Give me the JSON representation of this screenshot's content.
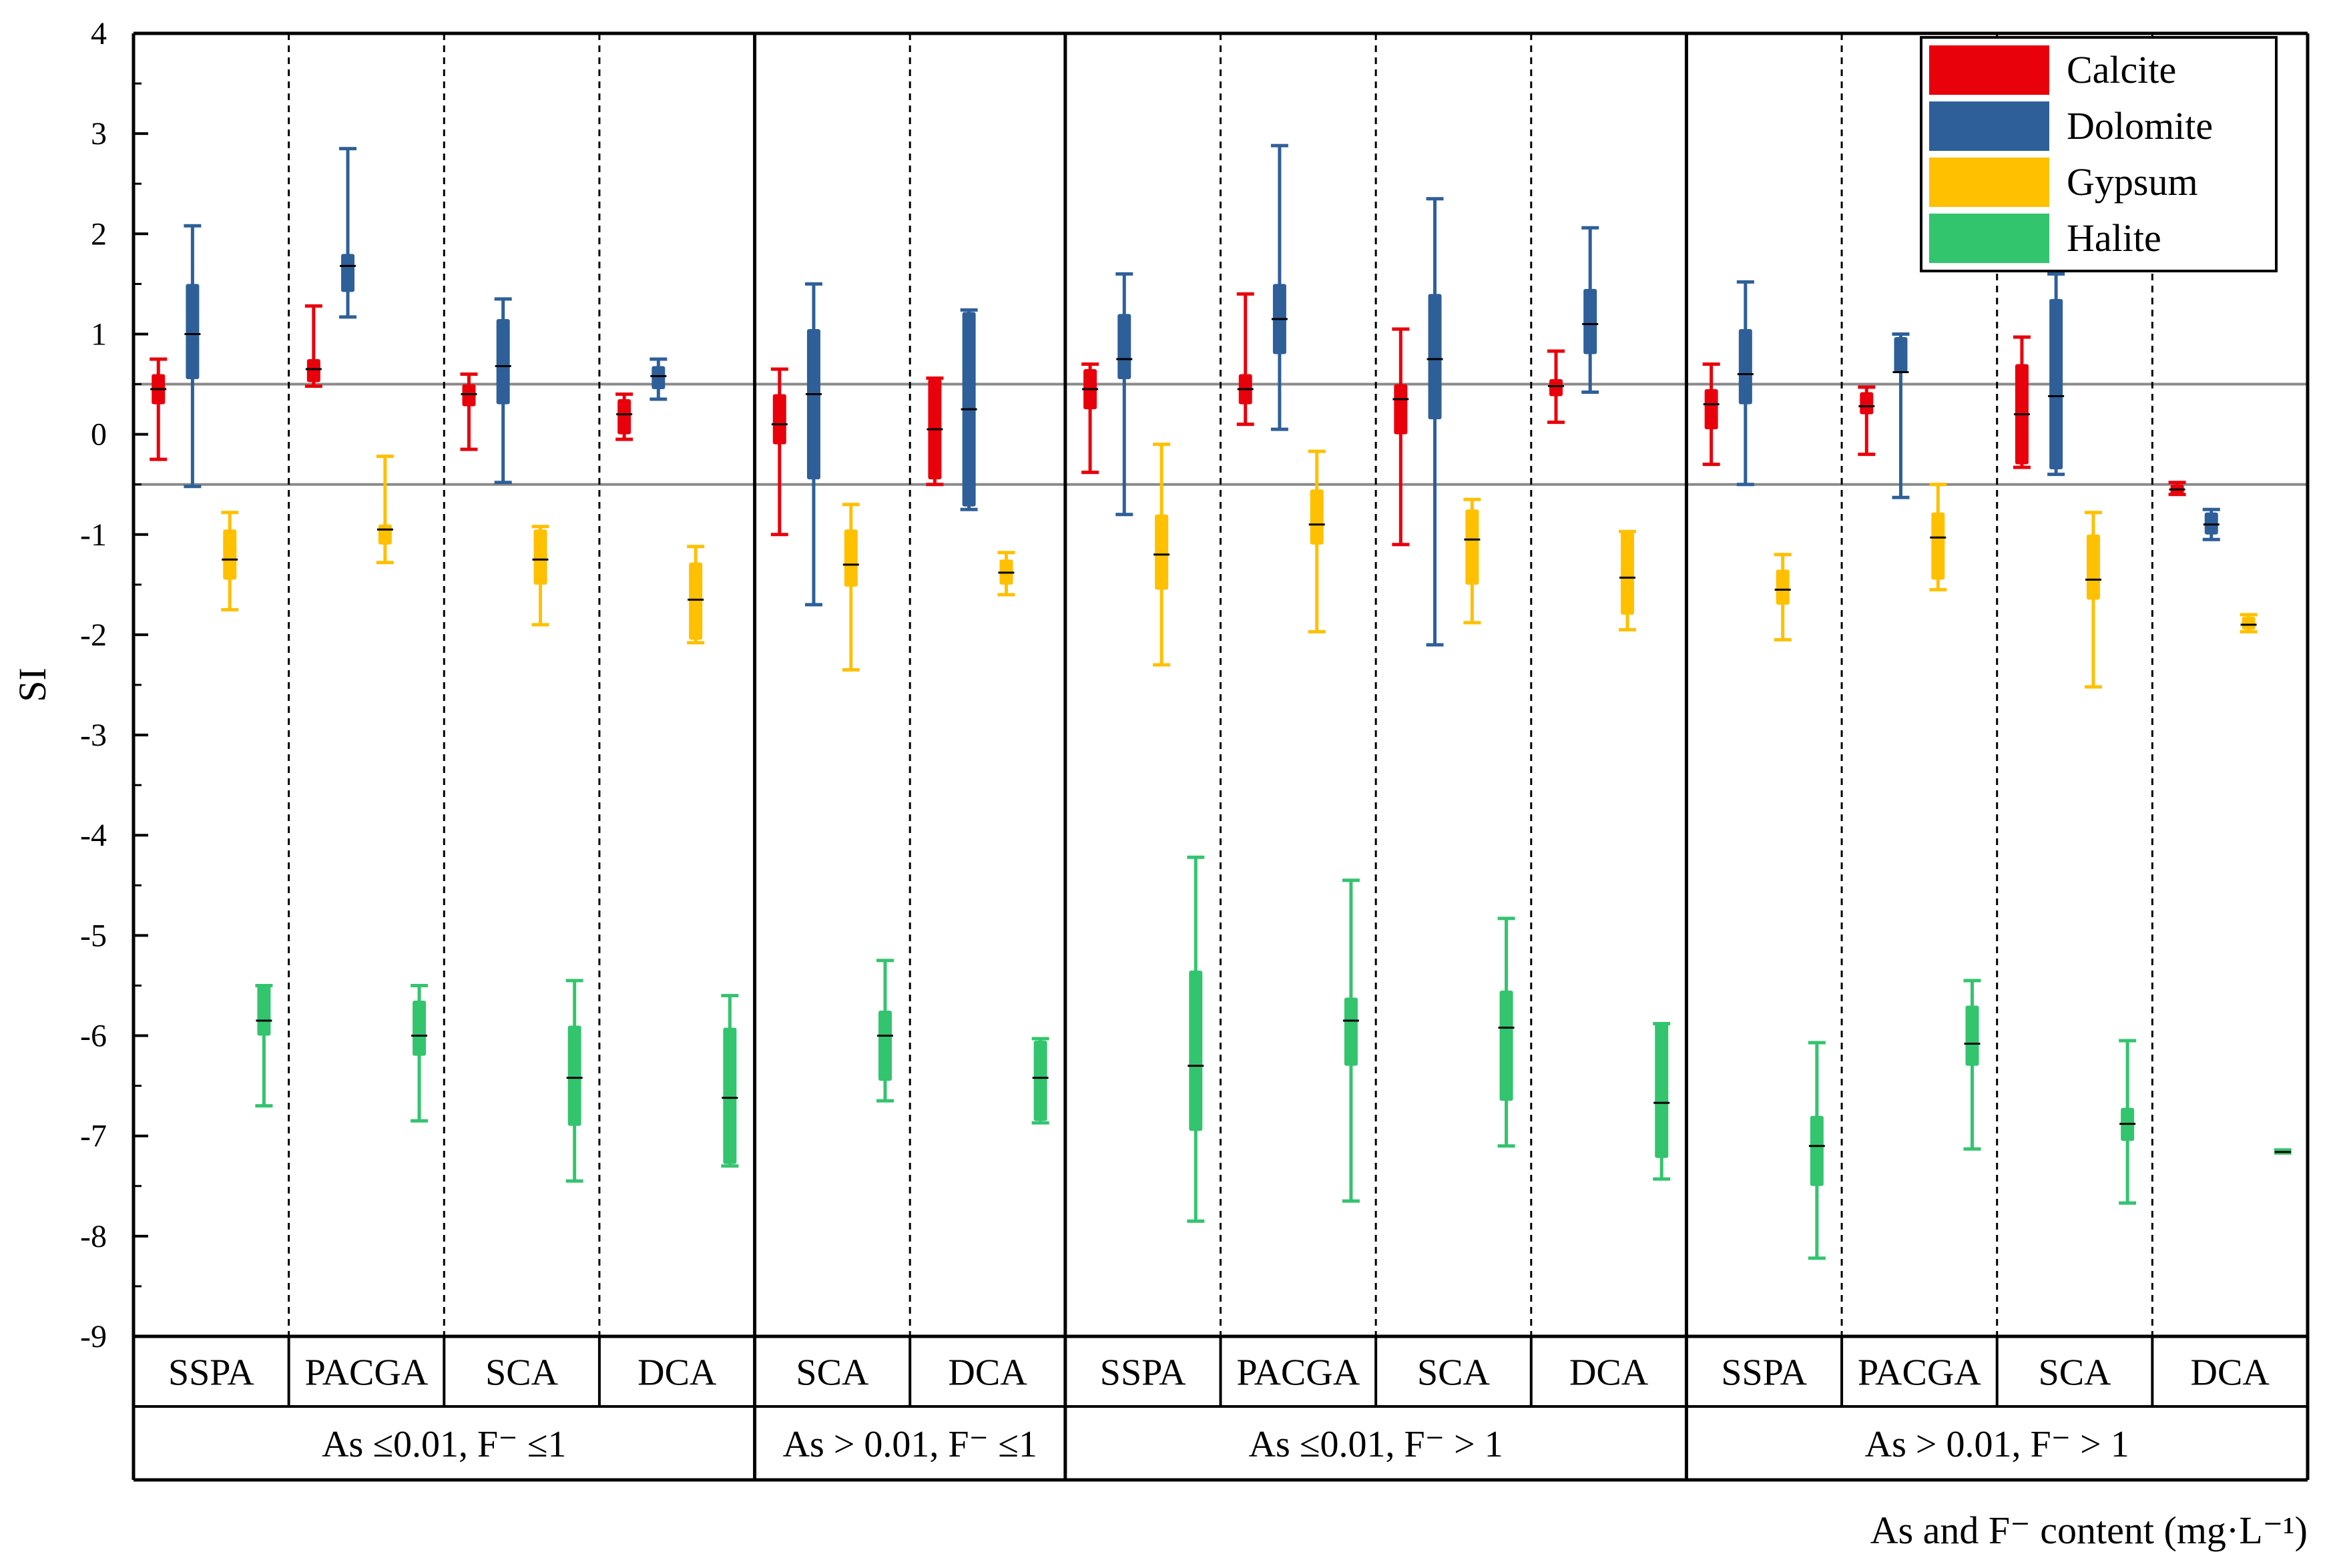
{
  "chart_data": {
    "type": "box",
    "ylabel": "SI",
    "xlabel": "As and F⁻ content (mg·L⁻¹)",
    "ylim": [
      -9,
      4
    ],
    "yticks": [
      "4",
      "3",
      "2",
      "1",
      "0",
      "-1",
      "-2",
      "-3",
      "-4",
      "-5",
      "-6",
      "-7",
      "-8",
      "-9"
    ],
    "reference_lines": [
      0.5,
      -0.5
    ],
    "legend": {
      "placement": "top-right",
      "entries": [
        {
          "name": "Calcite",
          "color": "#e8000b"
        },
        {
          "name": "Dolomite",
          "color": "#2e5f99"
        },
        {
          "name": "Gypsum",
          "color": "#ffc000"
        },
        {
          "name": "Halite",
          "color": "#33c46e"
        }
      ]
    },
    "groups": [
      {
        "label": "As ≤0.01, F⁻ ≤1",
        "categories": [
          "SSPA",
          "PACGA",
          "SCA",
          "DCA"
        ]
      },
      {
        "label": "As > 0.01, F⁻ ≤1",
        "categories": [
          "SCA",
          "DCA"
        ]
      },
      {
        "label": "As ≤0.01, F⁻ > 1",
        "categories": [
          "SSPA",
          "PACGA",
          "SCA",
          "DCA"
        ]
      },
      {
        "label": "As > 0.01, F⁻ > 1",
        "categories": [
          "SSPA",
          "PACGA",
          "SCA",
          "DCA"
        ]
      }
    ],
    "series": [
      {
        "name": "Calcite",
        "boxes": [
          {
            "min": -0.25,
            "q1": 0.3,
            "median": 0.45,
            "q3": 0.6,
            "max": 0.75
          },
          {
            "min": 0.48,
            "q1": 0.52,
            "median": 0.65,
            "q3": 0.75,
            "max": 1.28
          },
          {
            "min": -0.15,
            "q1": 0.28,
            "median": 0.4,
            "q3": 0.5,
            "max": 0.6
          },
          {
            "min": -0.05,
            "q1": 0.0,
            "median": 0.2,
            "q3": 0.35,
            "max": 0.4
          },
          {
            "min": -1.0,
            "q1": -0.1,
            "median": 0.1,
            "q3": 0.4,
            "max": 0.65
          },
          {
            "min": -0.5,
            "q1": -0.45,
            "median": 0.05,
            "q3": 0.55,
            "max": 0.56
          },
          {
            "min": -0.38,
            "q1": 0.25,
            "median": 0.45,
            "q3": 0.65,
            "max": 0.7
          },
          {
            "min": 0.1,
            "q1": 0.3,
            "median": 0.45,
            "q3": 0.6,
            "max": 1.4
          },
          {
            "min": -1.1,
            "q1": 0.0,
            "median": 0.35,
            "q3": 0.5,
            "max": 1.05
          },
          {
            "min": 0.12,
            "q1": 0.38,
            "median": 0.48,
            "q3": 0.55,
            "max": 0.83
          },
          {
            "min": -0.3,
            "q1": 0.05,
            "median": 0.3,
            "q3": 0.45,
            "max": 0.7
          },
          {
            "min": -0.2,
            "q1": 0.2,
            "median": 0.28,
            "q3": 0.42,
            "max": 0.47
          },
          {
            "min": -0.33,
            "q1": -0.3,
            "median": 0.2,
            "q3": 0.7,
            "max": 0.97
          },
          {
            "min": -0.6,
            "q1": -0.6,
            "median": -0.55,
            "q3": -0.5,
            "max": -0.48
          }
        ]
      },
      {
        "name": "Dolomite",
        "boxes": [
          {
            "min": -0.52,
            "q1": 0.55,
            "median": 1.0,
            "q3": 1.5,
            "max": 2.08
          },
          {
            "min": 1.17,
            "q1": 1.42,
            "median": 1.68,
            "q3": 1.8,
            "max": 2.85
          },
          {
            "min": -0.48,
            "q1": 0.3,
            "median": 0.68,
            "q3": 1.15,
            "max": 1.35
          },
          {
            "min": 0.35,
            "q1": 0.45,
            "median": 0.58,
            "q3": 0.68,
            "max": 0.75
          },
          {
            "min": -1.7,
            "q1": -0.45,
            "median": 0.4,
            "q3": 1.05,
            "max": 1.5
          },
          {
            "min": -0.75,
            "q1": -0.72,
            "median": 0.25,
            "q3": 1.22,
            "max": 1.24
          },
          {
            "min": -0.8,
            "q1": 0.55,
            "median": 0.75,
            "q3": 1.2,
            "max": 1.6
          },
          {
            "min": 0.05,
            "q1": 0.8,
            "median": 1.15,
            "q3": 1.5,
            "max": 2.88
          },
          {
            "min": -2.1,
            "q1": 0.15,
            "median": 0.75,
            "q3": 1.4,
            "max": 2.35
          },
          {
            "min": 0.42,
            "q1": 0.8,
            "median": 1.1,
            "q3": 1.45,
            "max": 2.06
          },
          {
            "min": -0.5,
            "q1": 0.3,
            "median": 0.6,
            "q3": 1.05,
            "max": 1.52
          },
          {
            "min": -0.63,
            "q1": 0.62,
            "median": 0.62,
            "q3": 0.97,
            "max": 1.0
          },
          {
            "min": -0.4,
            "q1": -0.35,
            "median": 0.38,
            "q3": 1.35,
            "max": 1.6
          },
          {
            "min": -1.05,
            "q1": -1.0,
            "median": -0.9,
            "q3": -0.78,
            "max": -0.75
          }
        ]
      },
      {
        "name": "Gypsum",
        "boxes": [
          {
            "min": -1.75,
            "q1": -1.45,
            "median": -1.25,
            "q3": -0.95,
            "max": -0.78
          },
          {
            "min": -1.28,
            "q1": -1.1,
            "median": -0.95,
            "q3": -0.9,
            "max": -0.22
          },
          {
            "min": -1.9,
            "q1": -1.5,
            "median": -1.25,
            "q3": -0.95,
            "max": -0.92
          },
          {
            "min": -2.08,
            "q1": -2.05,
            "median": -1.65,
            "q3": -1.28,
            "max": -1.12
          },
          {
            "min": -2.35,
            "q1": -1.52,
            "median": -1.3,
            "q3": -0.95,
            "max": -0.7
          },
          {
            "min": -1.6,
            "q1": -1.5,
            "median": -1.38,
            "q3": -1.25,
            "max": -1.18
          },
          {
            "min": -2.3,
            "q1": -1.55,
            "median": -1.2,
            "q3": -0.8,
            "max": -0.1
          },
          {
            "min": -1.97,
            "q1": -1.1,
            "median": -0.9,
            "q3": -0.55,
            "max": -0.17
          },
          {
            "min": -1.88,
            "q1": -1.5,
            "median": -1.05,
            "q3": -0.75,
            "max": -0.65
          },
          {
            "min": -1.95,
            "q1": -1.8,
            "median": -1.43,
            "q3": -0.98,
            "max": -0.97
          },
          {
            "min": -2.05,
            "q1": -1.7,
            "median": -1.55,
            "q3": -1.35,
            "max": -1.2
          },
          {
            "min": -1.55,
            "q1": -1.45,
            "median": -1.03,
            "q3": -0.78,
            "max": -0.5
          },
          {
            "min": -2.52,
            "q1": -1.65,
            "median": -1.45,
            "q3": -1.0,
            "max": -0.78
          },
          {
            "min": -1.97,
            "q1": -1.95,
            "median": -1.9,
            "q3": -1.82,
            "max": -1.8
          }
        ]
      },
      {
        "name": "Halite",
        "boxes": [
          {
            "min": -6.7,
            "q1": -6.0,
            "median": -5.85,
            "q3": -5.5,
            "max": -5.5
          },
          {
            "min": -6.85,
            "q1": -6.2,
            "median": -6.0,
            "q3": -5.65,
            "max": -5.5
          },
          {
            "min": -7.45,
            "q1": -6.9,
            "median": -6.42,
            "q3": -5.9,
            "max": -5.45
          },
          {
            "min": -7.3,
            "q1": -7.28,
            "median": -6.62,
            "q3": -5.92,
            "max": -5.6
          },
          {
            "min": -6.65,
            "q1": -6.45,
            "median": -6.0,
            "q3": -5.75,
            "max": -5.25
          },
          {
            "min": -6.87,
            "q1": -6.85,
            "median": -6.42,
            "q3": -6.05,
            "max": -6.03
          },
          {
            "min": -7.85,
            "q1": -6.95,
            "median": -6.3,
            "q3": -5.35,
            "max": -4.22
          },
          {
            "min": -7.65,
            "q1": -6.3,
            "median": -5.85,
            "q3": -5.62,
            "max": -4.45
          },
          {
            "min": -7.1,
            "q1": -6.65,
            "median": -5.92,
            "q3": -5.55,
            "max": -4.83
          },
          {
            "min": -7.43,
            "q1": -7.22,
            "median": -6.67,
            "q3": -5.88,
            "max": -5.88
          },
          {
            "min": -8.22,
            "q1": -7.5,
            "median": -7.1,
            "q3": -6.8,
            "max": -6.07
          },
          {
            "min": -7.13,
            "q1": -6.3,
            "median": -6.08,
            "q3": -5.7,
            "max": -5.45
          },
          {
            "min": -7.67,
            "q1": -7.05,
            "median": -6.88,
            "q3": -6.72,
            "max": -6.05
          },
          {
            "min": -7.17,
            "q1": -7.16,
            "median": -7.16,
            "q3": -7.15,
            "max": -7.14
          }
        ]
      }
    ]
  }
}
